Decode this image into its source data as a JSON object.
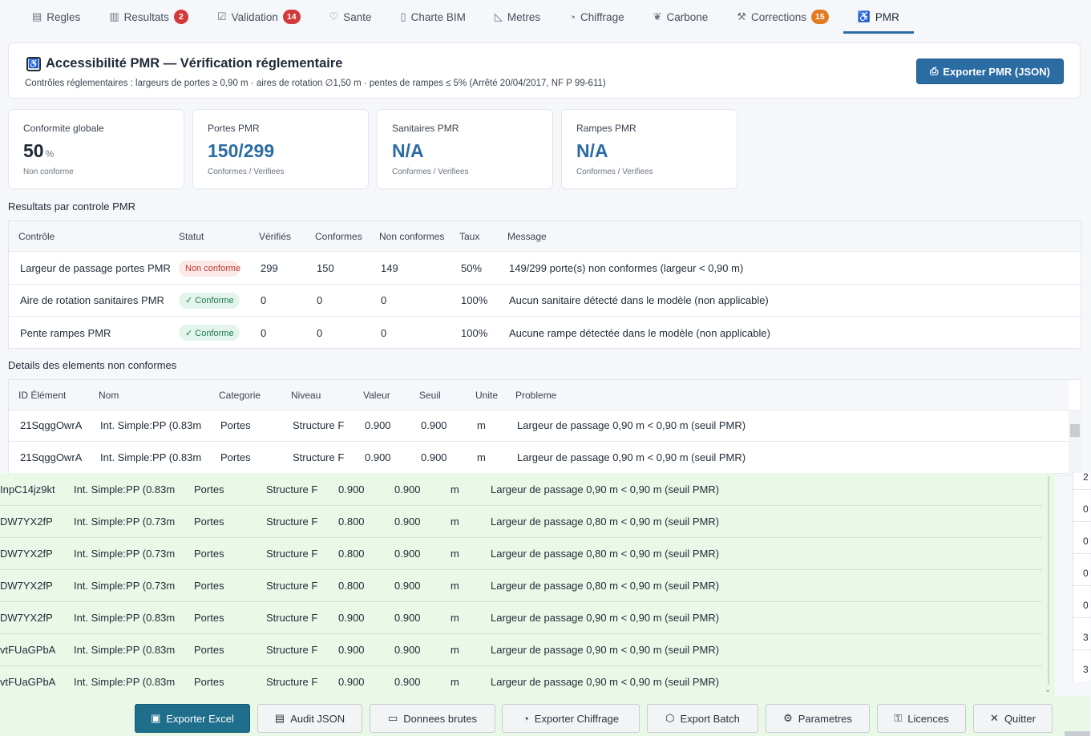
{
  "tabs": [
    {
      "icon": "▤",
      "label": "Regles"
    },
    {
      "icon": "▥",
      "label": "Resultats",
      "badge": "2"
    },
    {
      "icon": "☑",
      "label": "Validation",
      "badge": "14"
    },
    {
      "icon": "♡",
      "label": "Sante"
    },
    {
      "icon": "▯",
      "label": "Charte BIM"
    },
    {
      "icon": "◺",
      "label": "Metres"
    },
    {
      "icon": "◔",
      "label": "Chiffrage"
    },
    {
      "icon": "❦",
      "label": "Carbone"
    },
    {
      "icon": "⚒",
      "label": "Corrections",
      "badge": "15"
    },
    {
      "icon": "♿",
      "label": "PMR"
    }
  ],
  "header": {
    "title": "Accessibilité PMR — Vérification réglementaire",
    "subtitle": "Contrôles réglementaires : largeurs de portes ≥ 0,90 m · aires de rotation ∅1,50 m · pentes de rampes ≤ 5% (Arrêté 20/04/2017, NF P 99-611)",
    "export_label": "Exporter PMR (JSON)"
  },
  "kpis": [
    {
      "label": "Conformite globale",
      "value": "50",
      "unit": "%",
      "sub": "Non conforme"
    },
    {
      "label": "Portes PMR",
      "value": "150/299",
      "sub": "Conformes / Verifiees"
    },
    {
      "label": "Sanitaires PMR",
      "value": "N/A",
      "sub": "Conformes / Verifiees"
    },
    {
      "label": "Rampes PMR",
      "value": "N/A",
      "sub": "Conformes / Verifiees"
    }
  ],
  "controls": {
    "title": "Resultats par controle PMR",
    "headers": [
      "Contrôle",
      "Statut",
      "Vérifiés",
      "Conformes",
      "Non conformes",
      "Taux",
      "Message"
    ],
    "rows": [
      {
        "controle": "Largeur de passage portes PMR",
        "statut": "Non conforme",
        "ok": false,
        "verifies": "299",
        "conformes": "150",
        "non_conformes": "149",
        "taux": "50%",
        "message": "149/299 porte(s) non conformes (largeur < 0,90 m)"
      },
      {
        "controle": "Aire de rotation sanitaires PMR",
        "statut": "✓ Conforme",
        "ok": true,
        "verifies": "0",
        "conformes": "0",
        "non_conformes": "0",
        "taux": "100%",
        "message": "Aucun sanitaire détecté dans le modèle (non applicable)"
      },
      {
        "controle": "Pente rampes PMR",
        "statut": "✓ Conforme",
        "ok": true,
        "verifies": "0",
        "conformes": "0",
        "non_conformes": "0",
        "taux": "100%",
        "message": "Aucune rampe détectée dans le modèle (non applicable)"
      }
    ]
  },
  "details": {
    "title": "Details des elements non conformes",
    "headers": [
      "ID Élément",
      "Nom",
      "Categorie",
      "Niveau",
      "Valeur",
      "Seuil",
      "Unite",
      "Probleme"
    ],
    "rows": [
      {
        "id": "21SqggOwrA",
        "nom": "Int. Simple:PP (0.83m",
        "cat": "Portes",
        "niveau": "Structure F",
        "valeur": "0.900",
        "seuil": "0.900",
        "unite": "m",
        "probleme": "Largeur de passage 0,90 m < 0,90 m (seuil PMR)"
      },
      {
        "id": "21SqggOwrA",
        "nom": "Int. Simple:PP (0.83m",
        "cat": "Portes",
        "niveau": "Structure F",
        "valeur": "0.900",
        "seuil": "0.900",
        "unite": "m",
        "probleme": "Largeur de passage 0,90 m < 0,90 m (seuil PMR)"
      }
    ]
  },
  "overlay_rows": [
    {
      "id": "InpC14jz9kt",
      "nom": "Int. Simple:PP (0.83m",
      "cat": "Portes",
      "niveau": "Structure F",
      "valeur": "0.900",
      "seuil": "0.900",
      "unite": "m",
      "probleme": "Largeur de passage 0,90 m < 0,90 m (seuil PMR)"
    },
    {
      "id": "DW7YX2fP",
      "nom": "Int. Simple:PP (0.73m",
      "cat": "Portes",
      "niveau": "Structure F",
      "valeur": "0.800",
      "seuil": "0.900",
      "unite": "m",
      "probleme": "Largeur de passage 0,80 m < 0,90 m (seuil PMR)"
    },
    {
      "id": "DW7YX2fP",
      "nom": "Int. Simple:PP (0.73m",
      "cat": "Portes",
      "niveau": "Structure F",
      "valeur": "0.800",
      "seuil": "0.900",
      "unite": "m",
      "probleme": "Largeur de passage 0,80 m < 0,90 m (seuil PMR)"
    },
    {
      "id": "DW7YX2fP",
      "nom": "Int. Simple:PP (0.73m",
      "cat": "Portes",
      "niveau": "Structure F",
      "valeur": "0.800",
      "seuil": "0.900",
      "unite": "m",
      "probleme": "Largeur de passage 0,80 m < 0,90 m (seuil PMR)"
    },
    {
      "id": "DW7YX2fP",
      "nom": "Int. Simple:PP (0.83m",
      "cat": "Portes",
      "niveau": "Structure F",
      "valeur": "0.900",
      "seuil": "0.900",
      "unite": "m",
      "probleme": "Largeur de passage 0,90 m < 0,90 m (seuil PMR)"
    },
    {
      "id": "vtFUaGPbA",
      "nom": "Int. Simple:PP (0.83m",
      "cat": "Portes",
      "niveau": "Structure F",
      "valeur": "0.900",
      "seuil": "0.900",
      "unite": "m",
      "probleme": "Largeur de passage 0,90 m < 0,90 m (seuil PMR)"
    },
    {
      "id": "vtFUaGPbA",
      "nom": "Int. Simple:PP (0.83m",
      "cat": "Portes",
      "niveau": "Structure F",
      "valeur": "0.900",
      "seuil": "0.900",
      "unite": "m",
      "probleme": "Largeur de passage 0,90 m < 0,90 m (seuil PMR)"
    }
  ],
  "right_strip_values": [
    "2",
    "0",
    "0",
    "0",
    "0",
    "3",
    "3"
  ],
  "bottom_buttons": [
    {
      "icon": "▣",
      "label": "Exporter Excel",
      "primary": true
    },
    {
      "icon": "▤",
      "label": "Audit JSON"
    },
    {
      "icon": "▭",
      "label": "Donnees brutes"
    },
    {
      "icon": "◔",
      "label": "Exporter Chiffrage"
    },
    {
      "icon": "⬡",
      "label": "Export Batch"
    },
    {
      "icon": "⚙",
      "label": "Parametres"
    },
    {
      "icon": "⚿",
      "label": "Licences"
    },
    {
      "icon": "✕",
      "label": "Quitter"
    }
  ],
  "colors": {
    "accent": "#2b6ca3",
    "danger": "#d23a3a",
    "warning": "#e07b20",
    "success": "#1e7a4f",
    "overlay_bg": "#e9f8e7"
  }
}
